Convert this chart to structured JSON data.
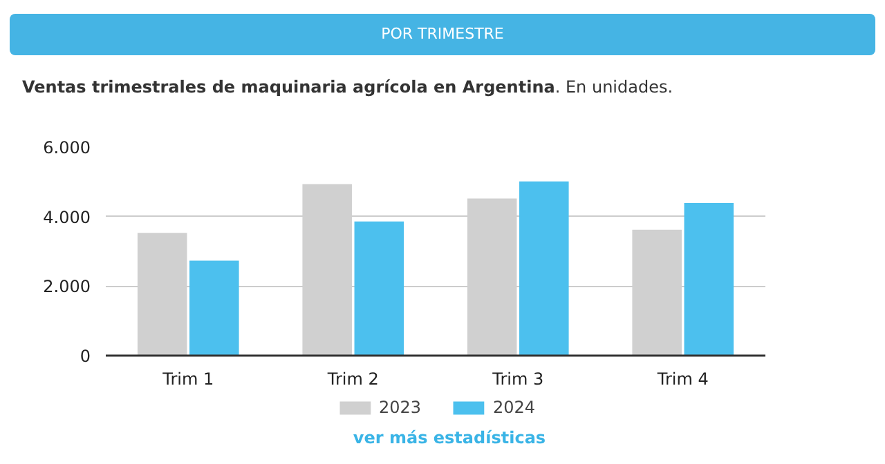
{
  "chart_data": {
    "type": "bar",
    "title": "POR TRIMESTRE",
    "subtitle": "Ventas trimestrales de maquinaria agrícola en Argentina",
    "annotations": [
      ". En unidades.",
      "ver más estadísticas"
    ],
    "categories": [
      "Trim 1",
      "Trim 2",
      "Trim 3",
      "Trim 4"
    ],
    "series": [
      {
        "name": "2023",
        "color": "#d0d0d0",
        "values": [
          3530,
          4930,
          4520,
          3620
        ]
      },
      {
        "name": "2024",
        "color": "#4cc0ee",
        "values": [
          2730,
          3860,
          5010,
          4390
        ]
      }
    ],
    "ylim": [
      0,
      6000
    ],
    "yticks": [
      {
        "value": 0,
        "label": "0"
      },
      {
        "value": 2000,
        "label": "2.000"
      },
      {
        "value": 4000,
        "label": "4.000"
      },
      {
        "value": 6000,
        "label": "6.000"
      }
    ],
    "grid": "y",
    "legend": "bottom"
  }
}
